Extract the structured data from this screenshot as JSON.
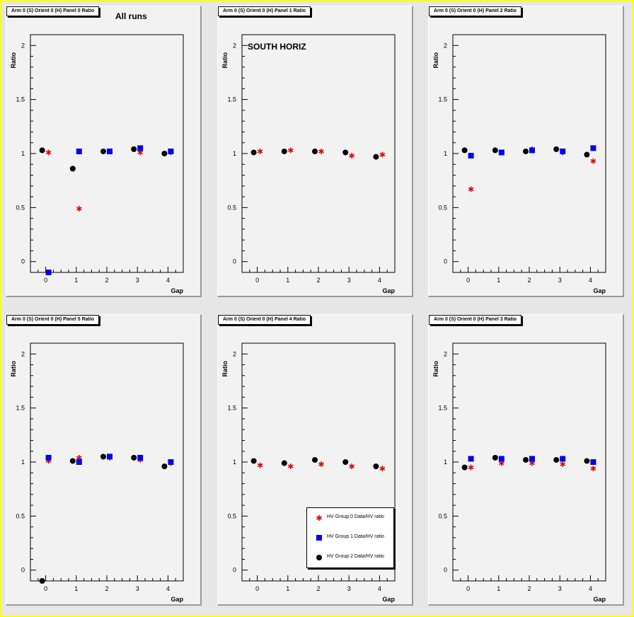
{
  "axes": {
    "xlabel": "Gap",
    "ylabel": "Ratio",
    "xlim": [
      -0.5,
      4.5
    ],
    "ylim": [
      -0.1,
      2.1
    ],
    "xticks": [
      0,
      1,
      2,
      3,
      4
    ],
    "xtick_labels": [
      "0",
      "1",
      "2",
      "3",
      "4"
    ],
    "yticks": [
      0,
      0.5,
      1,
      1.5,
      2
    ],
    "ytick_labels": [
      "0",
      "0.5",
      "1",
      "1.5",
      "2"
    ]
  },
  "series_styles": [
    {
      "name": "HV Group 0 Data/HV ratio",
      "marker": "star",
      "color": "#dd0000"
    },
    {
      "name": "HV Group 1 Data/HV ratio",
      "marker": "square",
      "color": "#0000ee"
    },
    {
      "name": "HV Group 2 Data/HV ratio",
      "marker": "circle",
      "color": "#000000"
    }
  ],
  "annotations": {
    "all_runs": "All runs",
    "south_horiz": "SOUTH HORIZ"
  },
  "chart_data": [
    {
      "type": "scatter",
      "title": "Arm 0 (S) Orient 0 (H) Panel 0 Ratio",
      "x": [
        0,
        1,
        2,
        3,
        4
      ],
      "series": [
        {
          "name": "HV Group 0 Data/HV ratio",
          "values": [
            1.01,
            0.49,
            1.02,
            1.01,
            1.01
          ]
        },
        {
          "name": "HV Group 1 Data/HV ratio",
          "values": [
            -0.1,
            1.02,
            1.02,
            1.05,
            1.02
          ]
        },
        {
          "name": "HV Group 2 Data/HV ratio",
          "values": [
            1.03,
            0.86,
            1.02,
            1.04,
            1.0
          ]
        }
      ]
    },
    {
      "type": "scatter",
      "title": "Arm 0 (S) Orient 0 (H) Panel 1 Ratio",
      "x": [
        0,
        1,
        2,
        3,
        4
      ],
      "series": [
        {
          "name": "HV Group 0 Data/HV ratio",
          "values": [
            1.02,
            1.03,
            1.02,
            0.98,
            0.99
          ]
        },
        {
          "name": "HV Group 2 Data/HV ratio",
          "values": [
            1.01,
            1.02,
            1.02,
            1.01,
            0.97
          ]
        }
      ]
    },
    {
      "type": "scatter",
      "title": "Arm 0 (S) Orient 0 (H) Panel 2 Ratio",
      "x": [
        0,
        1,
        2,
        3,
        4
      ],
      "series": [
        {
          "name": "HV Group 0 Data/HV ratio",
          "values": [
            0.67,
            1.01,
            1.04,
            1.01,
            0.93
          ]
        },
        {
          "name": "HV Group 1 Data/HV ratio",
          "values": [
            0.98,
            1.01,
            1.03,
            1.02,
            1.05
          ]
        },
        {
          "name": "HV Group 2 Data/HV ratio",
          "values": [
            1.03,
            1.03,
            1.02,
            1.04,
            0.99
          ]
        }
      ]
    },
    {
      "type": "scatter",
      "title": "Arm 0 (S) Orient 0 (H) Panel 5 Ratio",
      "x": [
        0,
        1,
        2,
        3,
        4
      ],
      "series": [
        {
          "name": "HV Group 0 Data/HV ratio",
          "values": [
            1.01,
            1.04,
            1.04,
            1.02,
            0.99
          ]
        },
        {
          "name": "HV Group 1 Data/HV ratio",
          "values": [
            1.04,
            1.0,
            1.05,
            1.04,
            1.0
          ]
        },
        {
          "name": "HV Group 2 Data/HV ratio",
          "values": [
            -0.1,
            1.01,
            1.05,
            1.04,
            0.96
          ]
        }
      ]
    },
    {
      "type": "scatter",
      "title": "Arm 0 (S) Orient 0 (H) Panel 4 Ratio",
      "legend": "bottom-right",
      "x": [
        0,
        1,
        2,
        3,
        4
      ],
      "series": [
        {
          "name": "HV Group 0 Data/HV ratio",
          "values": [
            0.97,
            0.96,
            0.98,
            0.96,
            0.94
          ]
        },
        {
          "name": "HV Group 2 Data/HV ratio",
          "values": [
            1.01,
            0.99,
            1.02,
            1.0,
            0.96
          ]
        }
      ]
    },
    {
      "type": "scatter",
      "title": "Arm 0 (S) Orient 0 (H) Panel 3 Ratio",
      "x": [
        0,
        1,
        2,
        3,
        4
      ],
      "series": [
        {
          "name": "HV Group 0 Data/HV ratio",
          "values": [
            0.95,
            0.99,
            0.99,
            0.98,
            0.94
          ]
        },
        {
          "name": "HV Group 1 Data/HV ratio",
          "values": [
            1.03,
            1.03,
            1.03,
            1.03,
            1.0
          ]
        },
        {
          "name": "HV Group 2 Data/HV ratio",
          "values": [
            0.95,
            1.04,
            1.02,
            1.02,
            1.01
          ]
        }
      ]
    }
  ]
}
